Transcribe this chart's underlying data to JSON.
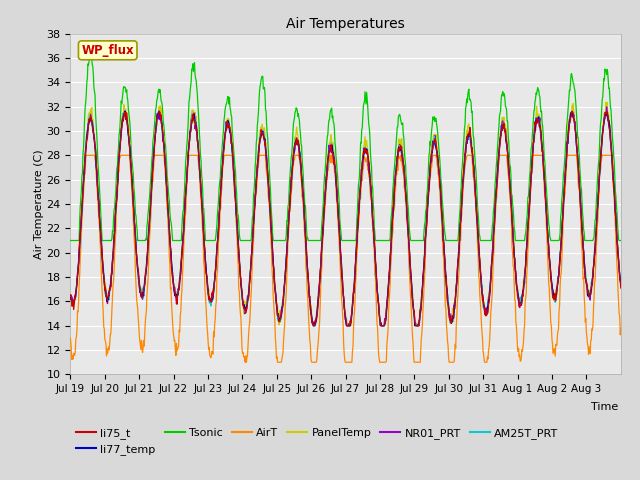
{
  "title": "Air Temperatures",
  "ylabel": "Air Temperature (C)",
  "xlabel": "Time",
  "ylim": [
    10,
    38
  ],
  "yticks": [
    10,
    12,
    14,
    16,
    18,
    20,
    22,
    24,
    26,
    28,
    30,
    32,
    34,
    36,
    38
  ],
  "fig_bg_color": "#d9d9d9",
  "plot_bg_color": "#e8e8e8",
  "series_colors": {
    "li75_t": "#cc0000",
    "li77_temp": "#0000cc",
    "Tsonic": "#00cc00",
    "AirT": "#ff8800",
    "PanelTemp": "#cccc00",
    "NR01_PRT": "#9900cc",
    "AM25T_PRT": "#00cccc"
  },
  "wp_flux_box": {
    "text": "WP_flux",
    "text_color": "#cc0000",
    "bg_color": "#ffffcc",
    "border_color": "#999900"
  },
  "tick_labels": [
    "Jul 19",
    "Jul 20",
    "Jul 21",
    "Jul 22",
    "Jul 23",
    "Jul 24",
    "Jul 25",
    "Jul 26",
    "Jul 27",
    "Jul 28",
    "Jul 29",
    "Jul 30",
    "Jul 31",
    "Aug 1",
    "Aug 2",
    "Aug 3"
  ],
  "n_days": 16,
  "n_points": 1008
}
